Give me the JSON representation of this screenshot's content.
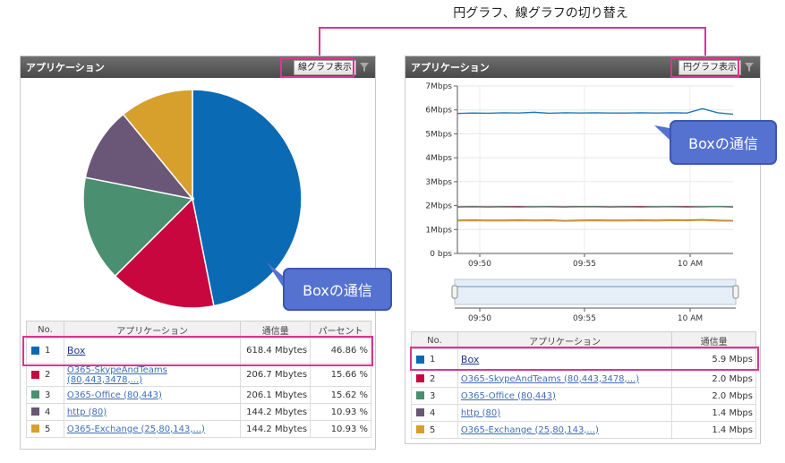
{
  "caption": "円グラフ、線グラフの切り替え",
  "left_panel": {
    "title": "アプリケーション",
    "toggle_label": "線グラフ表示",
    "callout": "Boxの通信",
    "columns": [
      "No.",
      "アプリケーション",
      "通信量",
      "パーセント"
    ],
    "rows": [
      {
        "no": "1",
        "app": "Box",
        "traffic": "618.4 Mbytes",
        "percent": "46.86 %",
        "color": "#0a6ab3"
      },
      {
        "no": "2",
        "app": "O365-SkypeAndTeams (80,443,3478,...)",
        "traffic": "206.7 Mbytes",
        "percent": "15.66 %",
        "color": "#c8073f"
      },
      {
        "no": "3",
        "app": "O365-Office (80,443)",
        "traffic": "206.1 Mbytes",
        "percent": "15.62 %",
        "color": "#4a8f70"
      },
      {
        "no": "4",
        "app": "http (80)",
        "traffic": "144.2 Mbytes",
        "percent": "10.93 %",
        "color": "#6a5677"
      },
      {
        "no": "5",
        "app": "O365-Exchange (25,80,143,...)",
        "traffic": "144.2 Mbytes",
        "percent": "10.93 %",
        "color": "#d79f2b"
      }
    ]
  },
  "right_panel": {
    "title": "アプリケーション",
    "toggle_label": "円グラフ表示",
    "callout": "Boxの通信",
    "columns": [
      "No.",
      "アプリケーション",
      "通信量"
    ],
    "rows": [
      {
        "no": "1",
        "app": "Box",
        "traffic": "5.9 Mbps",
        "color": "#0a6ab3"
      },
      {
        "no": "2",
        "app": "O365-SkypeAndTeams (80,443,3478,...)",
        "traffic": "2.0 Mbps",
        "color": "#c8073f"
      },
      {
        "no": "3",
        "app": "O365-Office (80,443)",
        "traffic": "2.0 Mbps",
        "color": "#4a8f70"
      },
      {
        "no": "4",
        "app": "http (80)",
        "traffic": "1.4 Mbps",
        "color": "#6a5677"
      },
      {
        "no": "5",
        "app": "O365-Exchange (25,80,143,...)",
        "traffic": "1.4 Mbps",
        "color": "#d79f2b"
      }
    ]
  },
  "chart_data": [
    {
      "type": "pie",
      "labels": [
        "Box",
        "O365-SkypeAndTeams (80,443,3478,...)",
        "O365-Office (80,443)",
        "http (80)",
        "O365-Exchange (25,80,143,...)"
      ],
      "values": [
        46.86,
        15.66,
        15.62,
        10.93,
        10.93
      ],
      "colors": [
        "#0a6ab3",
        "#c8073f",
        "#4a8f70",
        "#6a5677",
        "#d79f2b"
      ]
    },
    {
      "type": "line",
      "x_ticks": [
        "09:50",
        "09:55",
        "10 AM"
      ],
      "y_ticks": [
        "0 bps",
        "1Mbps",
        "2Mbps",
        "3Mbps",
        "4Mbps",
        "5Mbps",
        "6Mbps",
        "7Mbps"
      ],
      "ylim": [
        0,
        7
      ],
      "grid": true,
      "series": [
        {
          "values": [
            5.85,
            5.87,
            5.86,
            5.88,
            5.87,
            5.9,
            5.86,
            5.88,
            5.87,
            5.88,
            5.87,
            5.87,
            5.88,
            5.87,
            5.88,
            5.87,
            6.05,
            5.88,
            5.82
          ],
          "color": "#1f77b4"
        },
        {
          "values": [
            1.95,
            1.96,
            1.95,
            1.96,
            1.96,
            1.95,
            1.96,
            1.95,
            1.96,
            1.96,
            1.95,
            1.96,
            1.96,
            1.95,
            1.96,
            1.96,
            1.95,
            1.96,
            1.95
          ],
          "color": "#c8073f"
        },
        {
          "values": [
            1.94,
            1.95,
            1.94,
            1.95,
            1.94,
            1.95,
            1.95,
            1.94,
            1.95,
            1.95,
            1.94,
            1.95,
            1.94,
            1.95,
            1.95,
            1.94,
            1.95,
            1.96,
            1.94
          ],
          "color": "#4a8f70"
        },
        {
          "values": [
            1.38,
            1.39,
            1.38,
            1.38,
            1.39,
            1.38,
            1.39,
            1.37,
            1.38,
            1.39,
            1.38,
            1.38,
            1.39,
            1.38,
            1.4,
            1.39,
            1.41,
            1.38,
            1.37
          ],
          "color": "#6a5677"
        },
        {
          "values": [
            1.36,
            1.37,
            1.36,
            1.36,
            1.37,
            1.36,
            1.37,
            1.35,
            1.36,
            1.37,
            1.36,
            1.36,
            1.37,
            1.36,
            1.38,
            1.37,
            1.39,
            1.36,
            1.35
          ],
          "color": "#d79f2b"
        }
      ]
    }
  ]
}
